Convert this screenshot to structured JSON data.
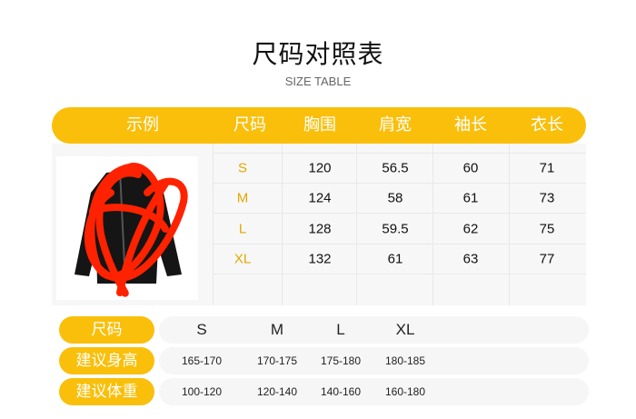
{
  "title": "尺码对照表",
  "subtitle": "SIZE TABLE",
  "colors": {
    "accent": "#f9bf0a",
    "size_text": "#e0a800"
  },
  "table": {
    "headers": [
      "示例",
      "尺码",
      "胸围",
      "肩宽",
      "袖长",
      "衣长"
    ],
    "rows": [
      [
        "S",
        "120",
        "56.5",
        "60",
        "71"
      ],
      [
        "M",
        "124",
        "58",
        "61",
        "73"
      ],
      [
        "L",
        "128",
        "59.5",
        "62",
        "75"
      ],
      [
        "XL",
        "132",
        "61",
        "63",
        "77"
      ]
    ]
  },
  "recommend": {
    "rows": [
      {
        "label": "尺码",
        "values": [
          "S",
          "M",
          "L",
          "XL"
        ]
      },
      {
        "label": "建议身高",
        "values": [
          "165-170",
          "170-175",
          "175-180",
          "180-185"
        ]
      },
      {
        "label": "建议体重",
        "values": [
          "100-120",
          "120-140",
          "140-160",
          "160-180"
        ]
      }
    ]
  }
}
